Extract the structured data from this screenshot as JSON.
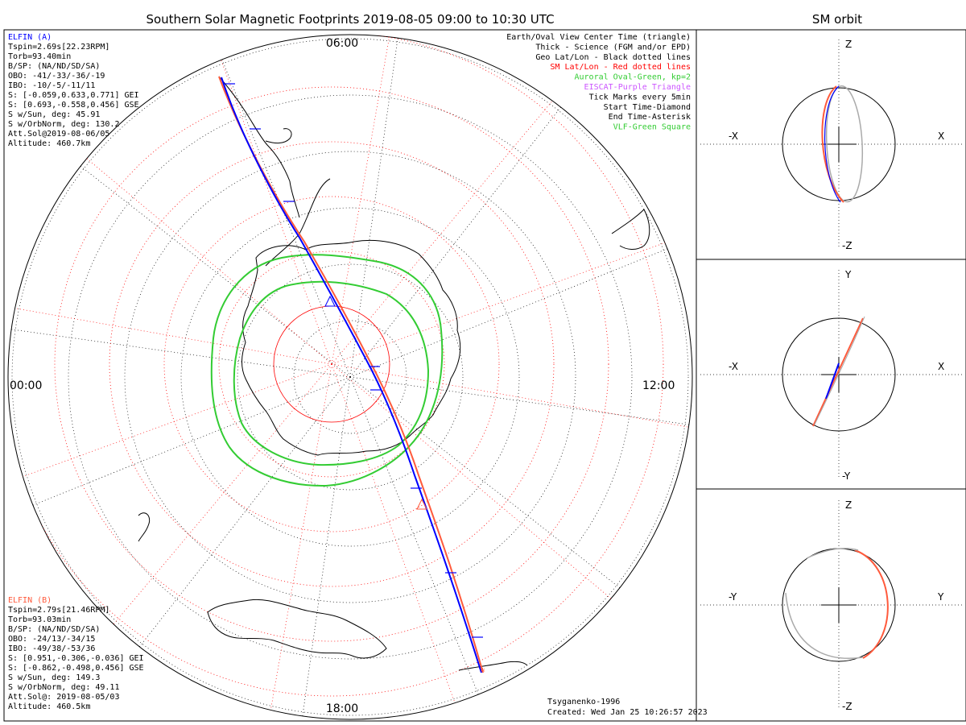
{
  "title": "Southern Solar Magnetic Footprints 2019-08-05 09:00 to 10:30 UTC",
  "side_title": "SM orbit",
  "time_labels": {
    "top": "06:00",
    "left": "00:00",
    "right": "12:00",
    "bottom": "18:00"
  },
  "elfin_a": {
    "name": "ELFIN (A)",
    "color": "#0000ff",
    "lines": [
      "Tspin=2.69s[22.23RPM]",
      "Torb=93.40min",
      "B/SP: (NA/ND/SD/SA)",
      "OBO: -41/-33/-36/-19",
      "IBO: -10/-5/-11/11",
      "S: [-0.059,0.633,0.771] GEI",
      "S: [0.693,-0.558,0.456] GSE",
      "S w/Sun, deg: 45.91",
      "S w/OrbNorm, deg: 130.2",
      "Att.Sol@2019-08-06/05",
      "Altitude: 460.7km"
    ]
  },
  "elfin_b": {
    "name": "ELFIN (B)",
    "color": "#ff5a3c",
    "lines": [
      "Tspin=2.79s[21.46RPM]",
      "Torb=93.03min",
      "B/SP: (NA/ND/SD/SA)",
      "OBO: -24/13/-34/15",
      "IBO: -49/38/-53/36",
      "S: [0.951,-0.306,-0.036] GEI",
      "S: [-0.862,-0.498,0.456] GSE",
      "S w/Sun, deg: 149.3",
      "S w/OrbNorm, deg: 49.11",
      "Att.Sol@: 2019-08-05/03",
      "Altitude: 460.5km"
    ]
  },
  "legend": [
    {
      "text": "Earth/Oval View Center Time (triangle)",
      "color": "#000000"
    },
    {
      "text": "Thick - Science (FGM and/or EPD)",
      "color": "#000000"
    },
    {
      "text": "Geo Lat/Lon - Black dotted lines",
      "color": "#000000"
    },
    {
      "text": "SM Lat/Lon - Red dotted lines",
      "color": "#ff0000"
    },
    {
      "text": "Auroral Oval-Green, kp=2",
      "color": "#33cc33"
    },
    {
      "text": "EISCAT-Purple Triangle",
      "color": "#cc55ff"
    },
    {
      "text": "Tick Marks every 5min",
      "color": "#000000"
    },
    {
      "text": "Start Time-Diamond",
      "color": "#000000"
    },
    {
      "text": "End Time-Asterisk",
      "color": "#000000"
    },
    {
      "text": "VLF-Green Square",
      "color": "#33cc33"
    }
  ],
  "footer": {
    "model": "Tsyganenko-1996",
    "created": "Created: Wed Jan 25 10:26:57 2023"
  },
  "orbit_panels": [
    {
      "top": "Z",
      "bottom": "-Z",
      "left": "-X",
      "right": "X"
    },
    {
      "top": "Y",
      "bottom": "-Y",
      "left": "-X",
      "right": "X"
    },
    {
      "top": "Z",
      "bottom": "-Z",
      "left": "-Y",
      "right": "Y"
    }
  ],
  "colors": {
    "elfin_a": "#0000ff",
    "elfin_b": "#ff5a3c",
    "oval": "#33cc33",
    "sm_grid": "#ff0000",
    "geo_grid": "#000000",
    "gray_orbit": "#aaaaaa"
  }
}
